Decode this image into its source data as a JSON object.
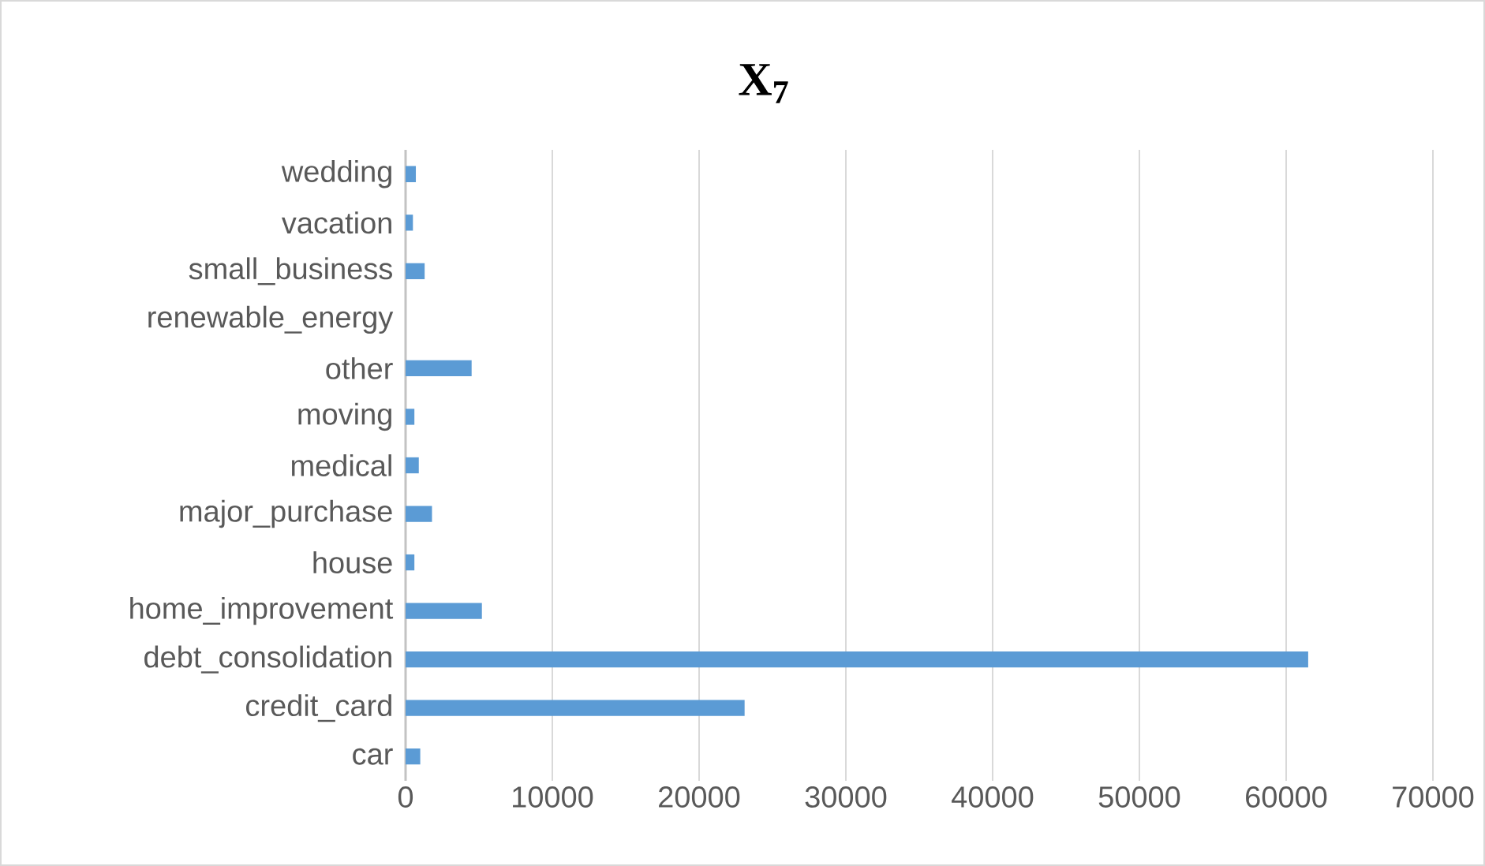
{
  "chart_data": {
    "type": "bar",
    "orientation": "horizontal",
    "title": "X$_{7}$",
    "categories": [
      "wedding",
      "vacation",
      "small_business",
      "renewable_energy",
      "other",
      "moving",
      "medical",
      "major_purchase",
      "house",
      "home_improvement",
      "debt_consolidation",
      "credit_card",
      "car"
    ],
    "values": [
      700,
      500,
      1300,
      null,
      4500,
      600,
      900,
      1800,
      600,
      5200,
      61500,
      23100,
      1000
    ],
    "color": "#5b9bd5",
    "xlim": [
      0,
      70000
    ],
    "xticks": [
      0,
      10000,
      20000,
      30000,
      40000,
      50000,
      60000,
      70000
    ],
    "grid": "x"
  }
}
